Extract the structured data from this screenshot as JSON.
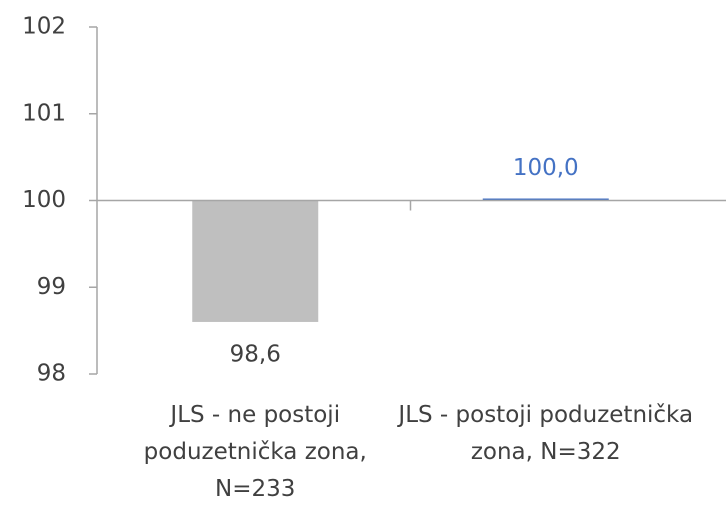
{
  "chart_data": {
    "type": "bar",
    "categories": [
      "JLS - ne postoji poduzetnička zona, N=233",
      "JLS - postoji poduzetnička zona, N=322"
    ],
    "values": [
      98.6,
      100.0
    ],
    "value_labels": [
      "98,6",
      "100,0"
    ],
    "colors": [
      "#bfbfbf",
      "#4472c4"
    ],
    "value_label_colors": [
      "#404040",
      "#4472c4"
    ],
    "ylim": [
      98,
      102
    ],
    "yticks": [
      98,
      99,
      100,
      101,
      102
    ],
    "baseline": 100,
    "grid": false
  }
}
